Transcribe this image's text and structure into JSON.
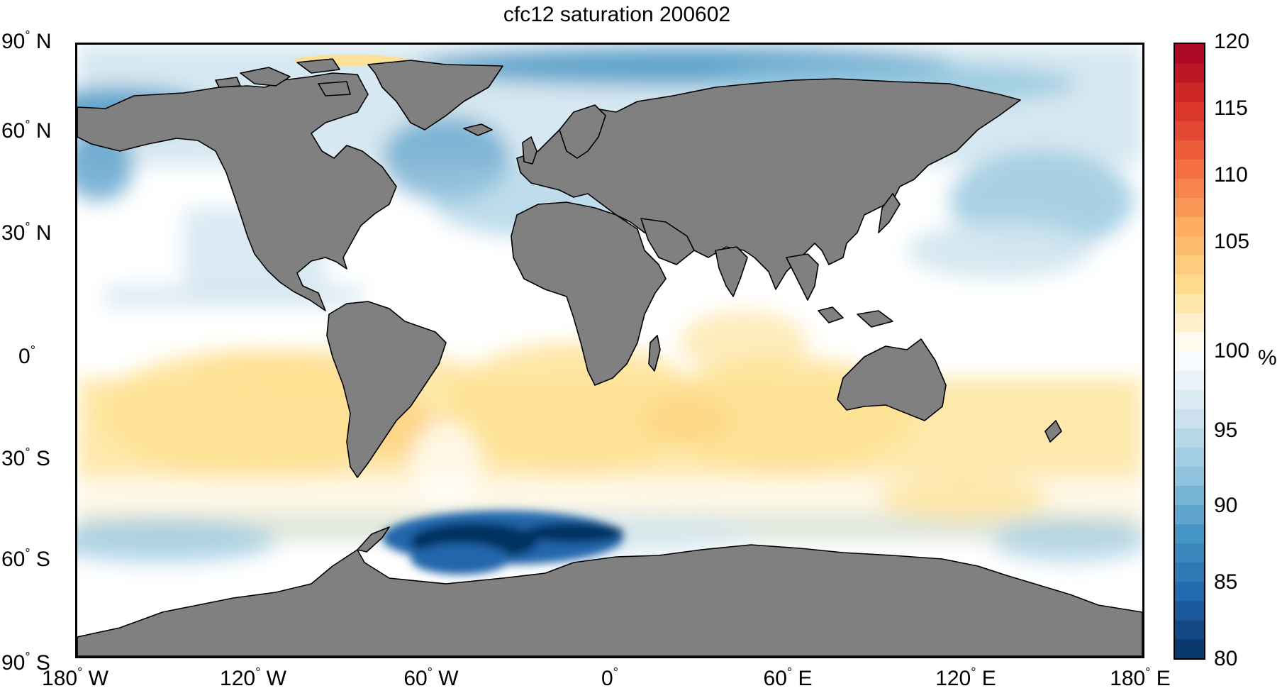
{
  "title": "cfc12 saturation 200602",
  "colorbar": {
    "unit": "%",
    "ticks": [
      "120",
      "115",
      "110",
      "105",
      "100",
      "95",
      "90",
      "85",
      "80"
    ],
    "min": 80,
    "max": 120,
    "colors": [
      "#053061",
      "#2166ac",
      "#4393c3",
      "#92c5de",
      "#d1e5f0",
      "#ffffff",
      "#fee090",
      "#fdae61",
      "#f46d43",
      "#d73027",
      "#a50026"
    ]
  },
  "axes": {
    "y_ticks": [
      {
        "deg": "90",
        "hemi": "N"
      },
      {
        "deg": "60",
        "hemi": "N"
      },
      {
        "deg": "30",
        "hemi": "N"
      },
      {
        "deg": "0",
        "hemi": ""
      },
      {
        "deg": "30",
        "hemi": "S"
      },
      {
        "deg": "60",
        "hemi": "S"
      },
      {
        "deg": "90",
        "hemi": "S"
      }
    ],
    "x_ticks": [
      {
        "deg": "180",
        "hemi": "W"
      },
      {
        "deg": "120",
        "hemi": "W"
      },
      {
        "deg": "60",
        "hemi": "W"
      },
      {
        "deg": "0",
        "hemi": ""
      },
      {
        "deg": "60",
        "hemi": "E"
      },
      {
        "deg": "120",
        "hemi": "E"
      },
      {
        "deg": "180",
        "hemi": "E"
      }
    ]
  },
  "map": {
    "land_color": "#808080",
    "projection": "equirectangular",
    "extent": {
      "lon": [
        -180,
        180
      ],
      "lat": [
        -90,
        90
      ]
    }
  }
}
